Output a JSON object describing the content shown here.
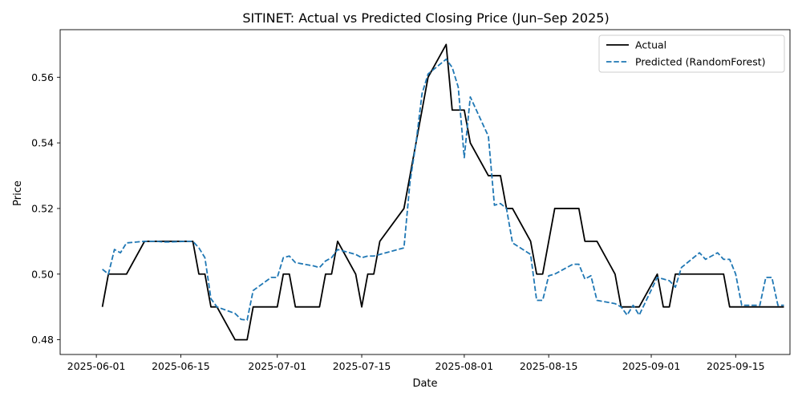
{
  "chart_data": {
    "type": "line",
    "title": "SITINET: Actual vs Predicted Closing Price (Jun–Sep 2025)",
    "xlabel": "Date",
    "ylabel": "Price",
    "xlim": [
      "2025-05-26",
      "2025-09-24"
    ],
    "ylim": [
      0.4755,
      0.5745
    ],
    "x_ticks": [
      "2025-06-01",
      "2025-06-15",
      "2025-07-01",
      "2025-07-15",
      "2025-08-01",
      "2025-08-15",
      "2025-09-01",
      "2025-09-15"
    ],
    "y_ticks": [
      0.48,
      0.5,
      0.52,
      0.54,
      0.56
    ],
    "y_tick_labels": [
      "0.48",
      "0.50",
      "0.52",
      "0.54",
      "0.56"
    ],
    "grid": false,
    "legend_position": "top-right",
    "series": [
      {
        "name": "Actual",
        "color": "#000000",
        "dash": "solid",
        "points": [
          [
            "2025-06-02",
            0.49
          ],
          [
            "2025-06-03",
            0.5
          ],
          [
            "2025-06-04",
            0.5
          ],
          [
            "2025-06-05",
            0.5
          ],
          [
            "2025-06-06",
            0.5
          ],
          [
            "2025-06-09",
            0.51
          ],
          [
            "2025-06-10",
            0.51
          ],
          [
            "2025-06-11",
            0.51
          ],
          [
            "2025-06-12",
            0.51
          ],
          [
            "2025-06-13",
            0.51
          ],
          [
            "2025-06-16",
            0.51
          ],
          [
            "2025-06-17",
            0.51
          ],
          [
            "2025-06-18",
            0.5
          ],
          [
            "2025-06-19",
            0.5
          ],
          [
            "2025-06-20",
            0.49
          ],
          [
            "2025-06-21",
            0.49
          ],
          [
            "2025-06-24",
            0.48
          ],
          [
            "2025-06-25",
            0.48
          ],
          [
            "2025-06-26",
            0.48
          ],
          [
            "2025-06-27",
            0.49
          ],
          [
            "2025-06-30",
            0.49
          ],
          [
            "2025-07-01",
            0.49
          ],
          [
            "2025-07-02",
            0.5
          ],
          [
            "2025-07-03",
            0.5
          ],
          [
            "2025-07-04",
            0.49
          ],
          [
            "2025-07-07",
            0.49
          ],
          [
            "2025-07-08",
            0.49
          ],
          [
            "2025-07-09",
            0.5
          ],
          [
            "2025-07-10",
            0.5
          ],
          [
            "2025-07-11",
            0.51
          ],
          [
            "2025-07-14",
            0.5
          ],
          [
            "2025-07-15",
            0.49
          ],
          [
            "2025-07-16",
            0.5
          ],
          [
            "2025-07-17",
            0.5
          ],
          [
            "2025-07-18",
            0.51
          ],
          [
            "2025-07-22",
            0.52
          ],
          [
            "2025-07-23",
            0.53
          ],
          [
            "2025-07-24",
            0.54
          ],
          [
            "2025-07-25",
            0.55
          ],
          [
            "2025-07-26",
            0.56
          ],
          [
            "2025-07-29",
            0.57
          ],
          [
            "2025-07-30",
            0.55
          ],
          [
            "2025-07-31",
            0.55
          ],
          [
            "2025-08-01",
            0.55
          ],
          [
            "2025-08-02",
            0.54
          ],
          [
            "2025-08-05",
            0.53
          ],
          [
            "2025-08-06",
            0.53
          ],
          [
            "2025-08-07",
            0.53
          ],
          [
            "2025-08-08",
            0.52
          ],
          [
            "2025-08-09",
            0.52
          ],
          [
            "2025-08-12",
            0.51
          ],
          [
            "2025-08-13",
            0.5
          ],
          [
            "2025-08-14",
            0.5
          ],
          [
            "2025-08-15",
            0.51
          ],
          [
            "2025-08-16",
            0.52
          ],
          [
            "2025-08-19",
            0.52
          ],
          [
            "2025-08-20",
            0.52
          ],
          [
            "2025-08-21",
            0.51
          ],
          [
            "2025-08-22",
            0.51
          ],
          [
            "2025-08-23",
            0.51
          ],
          [
            "2025-08-26",
            0.5
          ],
          [
            "2025-08-27",
            0.49
          ],
          [
            "2025-08-28",
            0.49
          ],
          [
            "2025-08-29",
            0.49
          ],
          [
            "2025-08-30",
            0.49
          ],
          [
            "2025-09-02",
            0.5
          ],
          [
            "2025-09-03",
            0.49
          ],
          [
            "2025-09-04",
            0.49
          ],
          [
            "2025-09-05",
            0.5
          ],
          [
            "2025-09-06",
            0.5
          ],
          [
            "2025-09-09",
            0.5
          ],
          [
            "2025-09-10",
            0.5
          ],
          [
            "2025-09-11",
            0.5
          ],
          [
            "2025-09-12",
            0.5
          ],
          [
            "2025-09-13",
            0.5
          ],
          [
            "2025-09-14",
            0.49
          ],
          [
            "2025-09-15",
            0.49
          ],
          [
            "2025-09-16",
            0.49
          ],
          [
            "2025-09-17",
            0.49
          ],
          [
            "2025-09-18",
            0.49
          ],
          [
            "2025-09-19",
            0.49
          ],
          [
            "2025-09-20",
            0.49
          ],
          [
            "2025-09-21",
            0.49
          ],
          [
            "2025-09-22",
            0.49
          ],
          [
            "2025-09-23",
            0.49
          ]
        ]
      },
      {
        "name": "Predicted (RandomForest)",
        "color": "#1f77b4",
        "dash": "dashed",
        "points": [
          [
            "2025-06-02",
            0.5015
          ],
          [
            "2025-06-03",
            0.5
          ],
          [
            "2025-06-04",
            0.5075
          ],
          [
            "2025-06-05",
            0.5065
          ],
          [
            "2025-06-06",
            0.5095
          ],
          [
            "2025-06-09",
            0.51
          ],
          [
            "2025-06-10",
            0.51
          ],
          [
            "2025-06-11",
            0.51
          ],
          [
            "2025-06-12",
            0.5098
          ],
          [
            "2025-06-13",
            0.5098
          ],
          [
            "2025-06-16",
            0.51
          ],
          [
            "2025-06-17",
            0.51
          ],
          [
            "2025-06-18",
            0.508
          ],
          [
            "2025-06-19",
            0.505
          ],
          [
            "2025-06-20",
            0.4925
          ],
          [
            "2025-06-21",
            0.49
          ],
          [
            "2025-06-24",
            0.488
          ],
          [
            "2025-06-25",
            0.4862
          ],
          [
            "2025-06-26",
            0.486
          ],
          [
            "2025-06-27",
            0.495
          ],
          [
            "2025-06-30",
            0.499
          ],
          [
            "2025-07-01",
            0.499
          ],
          [
            "2025-07-02",
            0.505
          ],
          [
            "2025-07-03",
            0.5055
          ],
          [
            "2025-07-04",
            0.5035
          ],
          [
            "2025-07-07",
            0.5025
          ],
          [
            "2025-07-08",
            0.502
          ],
          [
            "2025-07-09",
            0.504
          ],
          [
            "2025-07-10",
            0.505
          ],
          [
            "2025-07-11",
            0.5075
          ],
          [
            "2025-07-14",
            0.506
          ],
          [
            "2025-07-15",
            0.505
          ],
          [
            "2025-07-16",
            0.5055
          ],
          [
            "2025-07-17",
            0.5055
          ],
          [
            "2025-07-18",
            0.506
          ],
          [
            "2025-07-22",
            0.508
          ],
          [
            "2025-07-23",
            0.528
          ],
          [
            "2025-07-24",
            0.54
          ],
          [
            "2025-07-25",
            0.555
          ],
          [
            "2025-07-26",
            0.561
          ],
          [
            "2025-07-29",
            0.5655
          ],
          [
            "2025-07-30",
            0.563
          ],
          [
            "2025-07-31",
            0.557
          ],
          [
            "2025-08-01",
            0.5355
          ],
          [
            "2025-08-02",
            0.554
          ],
          [
            "2025-08-05",
            0.542
          ],
          [
            "2025-08-06",
            0.521
          ],
          [
            "2025-08-07",
            0.5215
          ],
          [
            "2025-08-08",
            0.52
          ],
          [
            "2025-08-09",
            0.5095
          ],
          [
            "2025-08-12",
            0.506
          ],
          [
            "2025-08-13",
            0.492
          ],
          [
            "2025-08-14",
            0.492
          ],
          [
            "2025-08-15",
            0.4995
          ],
          [
            "2025-08-16",
            0.5
          ],
          [
            "2025-08-19",
            0.503
          ],
          [
            "2025-08-20",
            0.503
          ],
          [
            "2025-08-21",
            0.4985
          ],
          [
            "2025-08-22",
            0.4995
          ],
          [
            "2025-08-23",
            0.492
          ],
          [
            "2025-08-26",
            0.491
          ],
          [
            "2025-08-27",
            0.49
          ],
          [
            "2025-08-28",
            0.4875
          ],
          [
            "2025-08-29",
            0.4905
          ],
          [
            "2025-08-30",
            0.4875
          ],
          [
            "2025-09-02",
            0.499
          ],
          [
            "2025-09-03",
            0.4985
          ],
          [
            "2025-09-04",
            0.498
          ],
          [
            "2025-09-05",
            0.496
          ],
          [
            "2025-09-06",
            0.502
          ],
          [
            "2025-09-09",
            0.5065
          ],
          [
            "2025-09-10",
            0.5045
          ],
          [
            "2025-09-11",
            0.5055
          ],
          [
            "2025-09-12",
            0.5065
          ],
          [
            "2025-09-13",
            0.5045
          ],
          [
            "2025-09-14",
            0.5045
          ],
          [
            "2025-09-15",
            0.5
          ],
          [
            "2025-09-16",
            0.4905
          ],
          [
            "2025-09-17",
            0.4905
          ],
          [
            "2025-09-18",
            0.4905
          ],
          [
            "2025-09-19",
            0.4905
          ],
          [
            "2025-09-20",
            0.499
          ],
          [
            "2025-09-21",
            0.499
          ],
          [
            "2025-09-22",
            0.4905
          ],
          [
            "2025-09-23",
            0.4905
          ]
        ]
      }
    ]
  }
}
